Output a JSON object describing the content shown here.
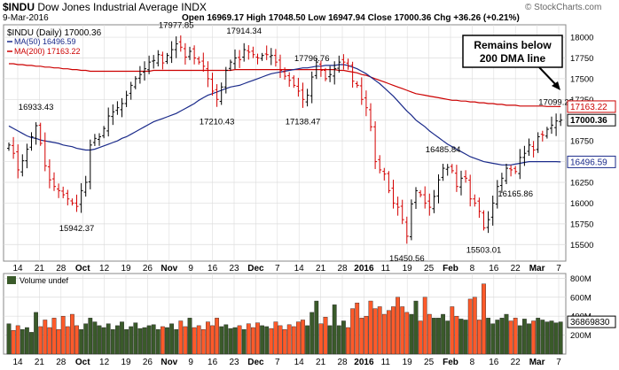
{
  "header": {
    "symbol": "$INDU",
    "name": "Dow Jones Industrial Average",
    "exchange": "INDX",
    "date": "9-Mar-2016",
    "ohlc_text": "Open 16969.17  High 17048.50  Low 16947.94  Close 17000.36  Chg +36.26 (+0.21%)",
    "watermark": "© StockCharts.com"
  },
  "legend": {
    "symbol_line": "$INDU (Daily) 17000.36",
    "ma50": "MA(50) 16496.59",
    "ma200": "MA(200) 17163.22",
    "volume": "Volume undef"
  },
  "annotation": {
    "line1": "Remains below",
    "line2": "200 DMA line"
  },
  "colors": {
    "up": "#000000",
    "down": "#d40000",
    "ma50": "#1a2a8a",
    "ma200": "#cc0000",
    "vol_up": "#3a5a2a",
    "vol_down": "#ff5a2a",
    "grid": "#dcdcdc",
    "close_tag": "#000000",
    "panel_bg": "#f7f7f7"
  },
  "chart_data": {
    "type": "candlestick",
    "price_ticks": [
      "15500",
      "15750",
      "16000",
      "16250",
      "16500",
      "16750",
      "17000",
      "17250",
      "17500",
      "17750",
      "18000"
    ],
    "volume_ticks": [
      "200M",
      "400M",
      "600M",
      "800M"
    ],
    "x_tick_labels": [
      "14",
      "21",
      "28",
      "Oct",
      "12",
      "19",
      "26",
      "Nov",
      "9",
      "16",
      "23",
      "Dec",
      "7",
      "14",
      "21",
      "28",
      "2016",
      "11",
      "19",
      "25",
      "Feb",
      "8",
      "16",
      "22",
      "Mar",
      "7"
    ],
    "price_annotations": [
      {
        "date_index": 6,
        "label": "16933.43"
      },
      {
        "date_index": 15,
        "label": "15942.37"
      },
      {
        "date_index": 37,
        "label": "17977.85"
      },
      {
        "date_index": 46,
        "label": "17210.43"
      },
      {
        "date_index": 52,
        "label": "17914.34"
      },
      {
        "date_index": 65,
        "label": "17138.47"
      },
      {
        "date_index": 67,
        "label": "17796.76"
      },
      {
        "date_index": 88,
        "label": "15450.56"
      },
      {
        "date_index": 96,
        "label": "16485.84"
      },
      {
        "date_index": 105,
        "label": "15503.01"
      },
      {
        "date_index": 112,
        "label": "16165.86"
      },
      {
        "date_index": 121,
        "label": "17099.25"
      }
    ],
    "right_labels": [
      "17163.22",
      "17000.36",
      "16496.59",
      "36869830"
    ],
    "ma50_last": 16496.59,
    "ma200_last": 17163.22,
    "last_close": 17000.36,
    "y_range": [
      15300,
      18150
    ],
    "volume_range_m": [
      0,
      850
    ],
    "closes": [
      16700,
      16600,
      16400,
      16510,
      16650,
      16800,
      16933,
      16720,
      16450,
      16280,
      16200,
      16150,
      16100,
      16050,
      16000,
      15960,
      16150,
      16250,
      16700,
      16780,
      16800,
      16900,
      17050,
      17100,
      17150,
      17200,
      17300,
      17420,
      17500,
      17550,
      17620,
      17700,
      17720,
      17790,
      17690,
      17780,
      17850,
      17920,
      17880,
      17760,
      17830,
      17750,
      17700,
      17650,
      17500,
      17350,
      17250,
      17400,
      17600,
      17700,
      17750,
      17730,
      17850,
      17820,
      17790,
      17750,
      17780,
      17790,
      17780,
      17700,
      17600,
      17530,
      17480,
      17420,
      17350,
      17250,
      17300,
      17520,
      17700,
      17600,
      17500,
      17550,
      17620,
      17700,
      17700,
      17650,
      17470,
      17420,
      17250,
      17150,
      16920,
      16500,
      16400,
      16350,
      16150,
      16000,
      15950,
      15800,
      15600,
      15990,
      16150,
      16100,
      16000,
      15950,
      16080,
      16280,
      16420,
      16430,
      16390,
      16200,
      16300,
      16300,
      16050,
      16000,
      15900,
      15700,
      15800,
      16000,
      16200,
      16300,
      16420,
      16400,
      16380,
      16550,
      16600,
      16700,
      16640,
      16800,
      16820,
      16890,
      16940,
      16990,
      17000
    ],
    "ma50": [
      16930,
      16900,
      16870,
      16840,
      16810,
      16790,
      16780,
      16760,
      16750,
      16740,
      16730,
      16720,
      16700,
      16690,
      16680,
      16660,
      16650,
      16640,
      16640,
      16650,
      16670,
      16690,
      16710,
      16730,
      16750,
      16780,
      16800,
      16830,
      16860,
      16890,
      16920,
      16950,
      16980,
      17000,
      17020,
      17040,
      17060,
      17080,
      17110,
      17140,
      17170,
      17200,
      17240,
      17270,
      17300,
      17320,
      17340,
      17360,
      17380,
      17400,
      17410,
      17420,
      17440,
      17460,
      17480,
      17500,
      17520,
      17540,
      17560,
      17570,
      17580,
      17590,
      17600,
      17610,
      17620,
      17630,
      17630,
      17640,
      17650,
      17650,
      17660,
      17660,
      17660,
      17670,
      17670,
      17660,
      17640,
      17620,
      17590,
      17560,
      17520,
      17480,
      17440,
      17390,
      17340,
      17290,
      17230,
      17170,
      17110,
      17060,
      17000,
      16960,
      16920,
      16870,
      16830,
      16790,
      16750,
      16710,
      16680,
      16650,
      16620,
      16590,
      16560,
      16540,
      16520,
      16500,
      16490,
      16480,
      16470,
      16460,
      16460,
      16460,
      16470,
      16480,
      16490,
      16500,
      16500,
      16500,
      16500,
      16500,
      16500,
      16500,
      16496.59
    ],
    "ma200": [
      17680,
      17680,
      17670,
      17670,
      17660,
      17660,
      17650,
      17650,
      17640,
      17640,
      17630,
      17630,
      17620,
      17620,
      17610,
      17610,
      17600,
      17600,
      17590,
      17590,
      17590,
      17590,
      17590,
      17590,
      17590,
      17590,
      17590,
      17590,
      17590,
      17590,
      17590,
      17590,
      17600,
      17600,
      17600,
      17600,
      17600,
      17600,
      17600,
      17600,
      17600,
      17600,
      17600,
      17600,
      17600,
      17600,
      17600,
      17600,
      17600,
      17600,
      17610,
      17610,
      17610,
      17610,
      17610,
      17610,
      17610,
      17610,
      17610,
      17610,
      17610,
      17610,
      17610,
      17610,
      17610,
      17610,
      17610,
      17610,
      17610,
      17610,
      17610,
      17610,
      17610,
      17600,
      17600,
      17590,
      17580,
      17570,
      17550,
      17540,
      17520,
      17500,
      17480,
      17460,
      17440,
      17420,
      17400,
      17380,
      17360,
      17340,
      17320,
      17310,
      17300,
      17290,
      17280,
      17270,
      17260,
      17250,
      17240,
      17240,
      17230,
      17230,
      17220,
      17220,
      17210,
      17210,
      17200,
      17200,
      17190,
      17190,
      17180,
      17180,
      17180,
      17170,
      17170,
      17170,
      17170,
      17170,
      17170,
      17165,
      17165,
      17165,
      17163.22
    ],
    "volumes_m": [
      320,
      250,
      300,
      260,
      280,
      230,
      440,
      290,
      360,
      280,
      380,
      260,
      400,
      290,
      420,
      300,
      260,
      320,
      380,
      340,
      300,
      280,
      320,
      260,
      300,
      340,
      260,
      290,
      330,
      270,
      280,
      300,
      310,
      260,
      290,
      280,
      320,
      260,
      350,
      290,
      380,
      280,
      300,
      260,
      340,
      300,
      380,
      290,
      310,
      270,
      280,
      300,
      260,
      320,
      280,
      330,
      300,
      290,
      270,
      340,
      300,
      260,
      310,
      290,
      340,
      360,
      300,
      440,
      560,
      320,
      390,
      300,
      520,
      300,
      350,
      280,
      480,
      540,
      380,
      400,
      560,
      480,
      500,
      420,
      460,
      500,
      600,
      500,
      440,
      420,
      560,
      350,
      600,
      420,
      380,
      380,
      420,
      350,
      500,
      400,
      370,
      360,
      580,
      600,
      360,
      740,
      380,
      320,
      360,
      380,
      420,
      350,
      380,
      300,
      370,
      320,
      350,
      380,
      360,
      340,
      350,
      330,
      340
    ]
  }
}
